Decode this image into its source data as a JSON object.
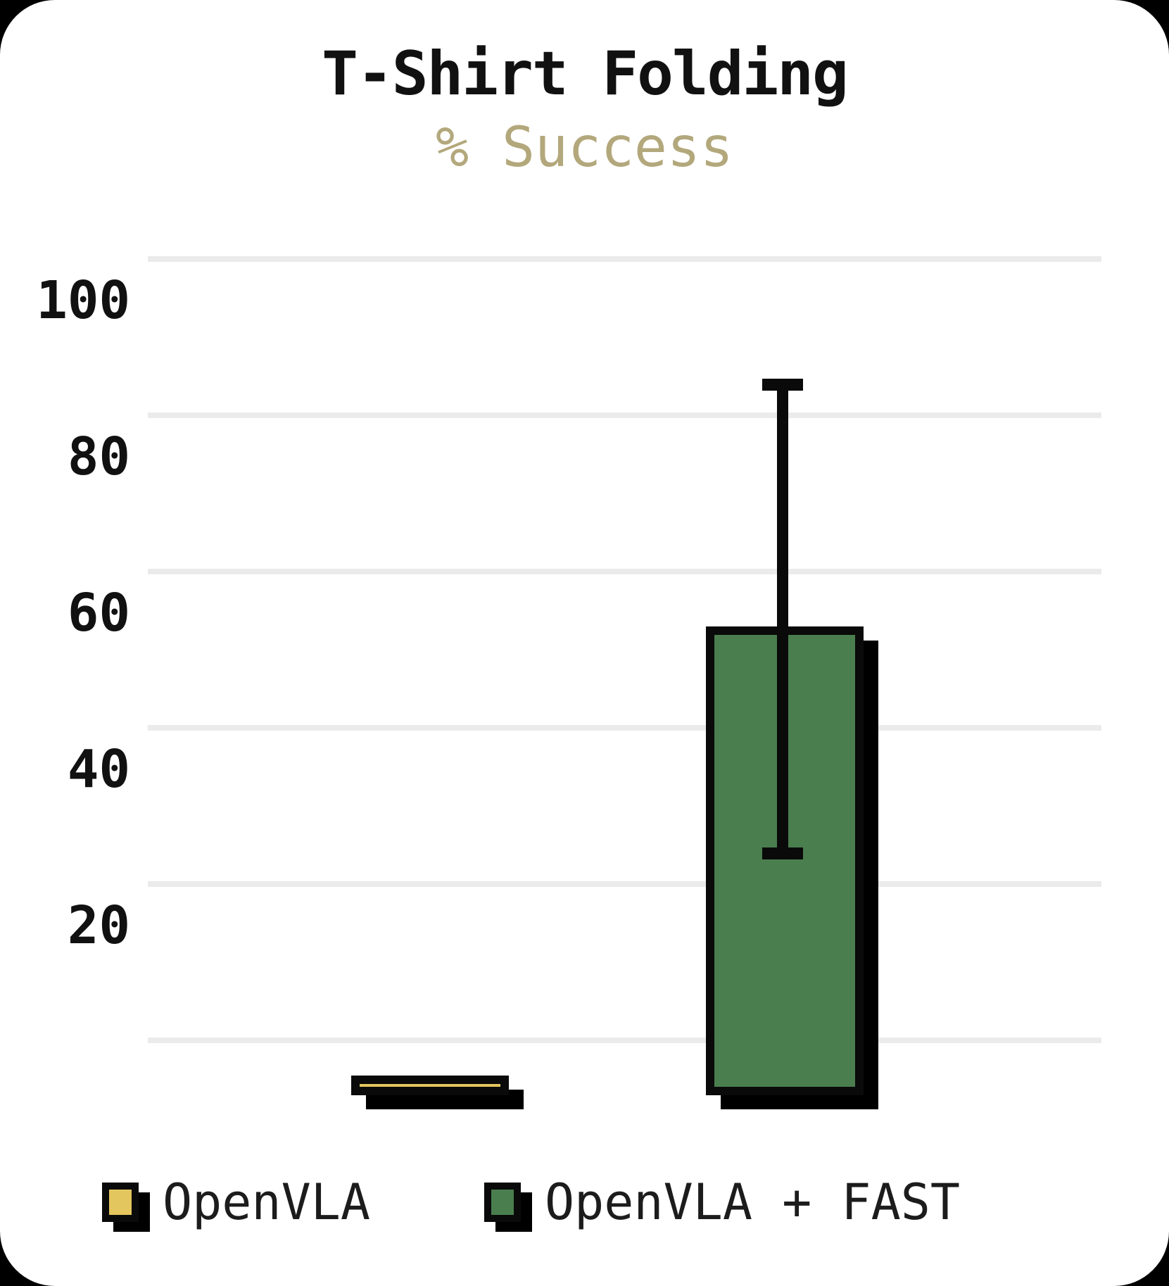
{
  "title": "T-Shirt Folding",
  "subtitle": "% Success",
  "colors": {
    "page_bg": "#000000",
    "card_bg": "#ffffff",
    "ink": "#111111",
    "subtitle_tan": "#b3a87c",
    "gridline_gray": "#ebebeb",
    "openvla_yellow": "#e4c65e",
    "openvla_fast_green": "#4a7e4e",
    "outline_black": "#000000"
  },
  "chart_data": {
    "type": "bar",
    "title": "T-Shirt Folding",
    "subtitle": "% Success",
    "ylabel": "% Success",
    "ylim": [
      0,
      100
    ],
    "y_ticks": [
      100,
      80,
      60,
      40,
      20
    ],
    "grid": "horizontal-only",
    "legend_position": "bottom",
    "categories": [
      "OpenVLA",
      "OpenVLA + FAST"
    ],
    "series": [
      {
        "name": "OpenVLA",
        "value": 0,
        "color": "#e4c65e"
      },
      {
        "name": "OpenVLA + FAST",
        "value": 53,
        "color": "#4a7e4e",
        "error_low": 24,
        "error_high": 84
      }
    ]
  },
  "legend": {
    "items": [
      {
        "label": "OpenVLA",
        "color": "#e4c65e"
      },
      {
        "label": "OpenVLA + FAST",
        "color": "#4a7e4e"
      }
    ]
  }
}
